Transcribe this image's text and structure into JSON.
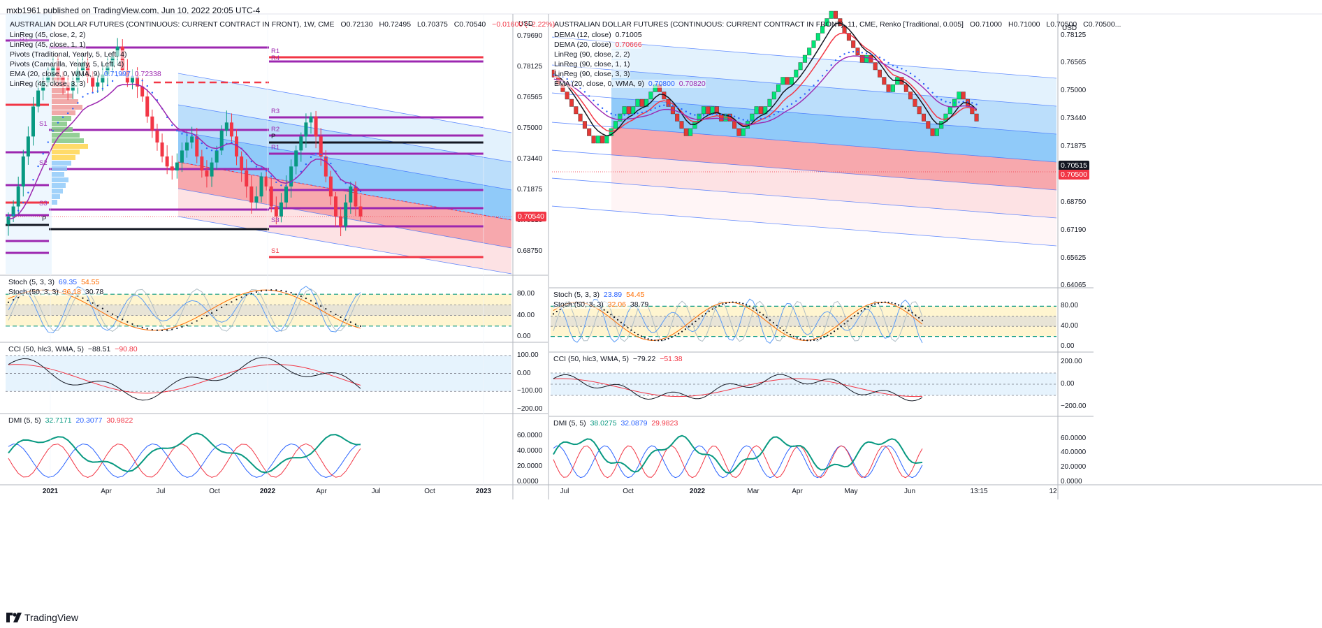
{
  "header": {
    "publish_line": "mxb1961 published on TradingView.com, Jun 10, 2022 20:05 UTC-4"
  },
  "footer": {
    "logo_text": "TradingView"
  },
  "left": {
    "title": "AUSTRALIAN DOLLAR FUTURES (CONTINUOUS: CURRENT CONTRACT IN FRONT), 1W, CME",
    "ohlc": {
      "o": "O0.72130",
      "h": "H0.72495",
      "l": "L0.70375",
      "c": "C0.70540",
      "chg": "−0.01600 (−2.22%)"
    },
    "indicators": [
      {
        "label": "LinReg (45, close, 2, 2)",
        "values": []
      },
      {
        "label": "LinReg (45, close, 1, 1)",
        "values": []
      },
      {
        "label": "Pivots (Traditional, Yearly, 5, Left, 4)",
        "values": []
      },
      {
        "label": "Pivots (Camarilla, Yearly, 5, Left, 4)",
        "values": []
      },
      {
        "label": "EMA (20, close, 0, WMA, 9)",
        "values": [
          {
            "text": "0.71997",
            "color": "#2962ff"
          },
          {
            "text": "0.72338",
            "color": "#9c27b0"
          }
        ]
      },
      {
        "label": "LinReg (45, close, 3, 3)",
        "values": []
      }
    ],
    "currency": "USD",
    "price_ticks": [
      "0.79690",
      "0.78125",
      "0.76565",
      "0.75000",
      "0.73440",
      "0.71875",
      "0.70310",
      "0.68750"
    ],
    "last_price": "0.70540",
    "time_ticks": [
      "2021",
      "Apr",
      "Jul",
      "Oct",
      "2022",
      "Apr",
      "Jul",
      "Oct",
      "2023"
    ],
    "bold_time_ticks": [
      "2021",
      "2022",
      "2023"
    ],
    "pivot_labels": [
      "R1",
      "R4",
      "R3",
      "R2",
      "P",
      "R1",
      "S1",
      "S2",
      "S3",
      "S3",
      "S1",
      "P",
      "R1"
    ],
    "stoch": {
      "lines": [
        {
          "label": "Stoch (5, 3, 3)",
          "values": [
            {
              "text": "69.35",
              "color": "#2962ff"
            },
            {
              "text": "54.55",
              "color": "#ff6d00"
            }
          ]
        },
        {
          "label": "Stoch (50, 3, 3)",
          "values": [
            {
              "text": "36.18",
              "color": "#ff6d00"
            },
            {
              "text": "30.78",
              "color": "#131722"
            }
          ]
        }
      ],
      "ticks": [
        "80.00",
        "40.00",
        "0.00"
      ]
    },
    "cci": {
      "label": "CCI (50, hlc3, WMA, 5)",
      "values": [
        {
          "text": "−88.51",
          "color": "#131722"
        },
        {
          "text": "−90.80",
          "color": "#f23645"
        }
      ],
      "ticks": [
        "100.00",
        "0.00",
        "−100.00",
        "−200.00"
      ]
    },
    "dmi": {
      "label": "DMI (5, 5)",
      "values": [
        {
          "text": "32.7171",
          "color": "#089981"
        },
        {
          "text": "20.3077",
          "color": "#2962ff"
        },
        {
          "text": "30.9822",
          "color": "#f23645"
        }
      ],
      "ticks": [
        "60.0000",
        "40.0000",
        "20.0000",
        "0.0000"
      ]
    }
  },
  "right": {
    "title": "AUSTRALIAN DOLLAR FUTURES (CONTINUOUS: CURRENT CONTRACT IN FRONT), 11, CME, Renko [Traditional, 0.005]",
    "ohlc": {
      "o": "O0.71000",
      "h": "H0.71000",
      "l": "L0.70500",
      "c": "C0.70500..."
    },
    "indicators": [
      {
        "label": "DEMA (12, close)",
        "values": [
          {
            "text": "0.71005",
            "color": "#131722"
          }
        ]
      },
      {
        "label": "DEMA (20, close)",
        "values": [
          {
            "text": "0.70666",
            "color": "#f23645"
          }
        ]
      },
      {
        "label": "LinReg (90, close, 2, 2)",
        "values": []
      },
      {
        "label": "LinReg (90, close, 1, 1)",
        "values": []
      },
      {
        "label": "LinReg (90, close, 3, 3)",
        "values": []
      },
      {
        "label": "EMA (20, close, 0, WMA, 9)",
        "values": [
          {
            "text": "0.70800",
            "color": "#2962ff"
          },
          {
            "text": "0.70820",
            "color": "#9c27b0"
          }
        ]
      }
    ],
    "currency": "USD",
    "price_ticks": [
      "0.78125",
      "0.76565",
      "0.75000",
      "0.73440",
      "0.71875",
      "0.70310",
      "0.68750",
      "0.67190",
      "0.65625",
      "0.64065"
    ],
    "last_price": "0.70515",
    "last_price_2": "0.70500",
    "time_ticks": [
      "Jul",
      "Oct",
      "2022",
      "Mar",
      "Apr",
      "May",
      "Jun",
      "13:15",
      "12"
    ],
    "bold_time_ticks": [
      "2022"
    ],
    "stoch": {
      "lines": [
        {
          "label": "Stoch (5, 3, 3)",
          "values": [
            {
              "text": "23.89",
              "color": "#2962ff"
            },
            {
              "text": "54.45",
              "color": "#ff6d00"
            }
          ]
        },
        {
          "label": "Stoch (50, 3, 3)",
          "values": [
            {
              "text": "32.06",
              "color": "#ff6d00"
            },
            {
              "text": "38.79",
              "color": "#131722"
            }
          ]
        }
      ],
      "ticks": [
        "80.00",
        "40.00",
        "0.00"
      ]
    },
    "cci": {
      "label": "CCI (50, hlc3, WMA, 5)",
      "values": [
        {
          "text": "−79.22",
          "color": "#131722"
        },
        {
          "text": "−51.38",
          "color": "#f23645"
        }
      ],
      "ticks": [
        "200.00",
        "0.00",
        "−200.00"
      ]
    },
    "dmi": {
      "label": "DMI (5, 5)",
      "values": [
        {
          "text": "38.0275",
          "color": "#089981"
        },
        {
          "text": "32.0879",
          "color": "#2962ff"
        },
        {
          "text": "29.9823",
          "color": "#f23645"
        }
      ],
      "ticks": [
        "60.0000",
        "40.0000",
        "20.0000",
        "0.0000"
      ]
    }
  },
  "colors": {
    "up": "#089981",
    "down": "#f23645",
    "pivot_purple": "#9c27b0",
    "pivot_red": "#f23645",
    "channel_blue": "#2962ff",
    "stoch_band": "#fff3c4",
    "cci_band": "#e3f2fd",
    "renko_up": "#00e676",
    "renko_down": "#e53935"
  }
}
